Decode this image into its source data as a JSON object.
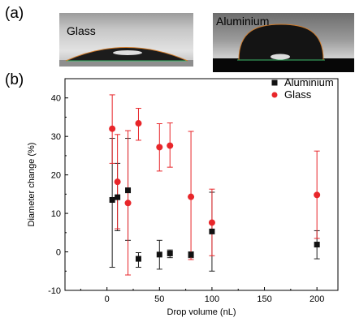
{
  "panel_a": {
    "label": "(a)",
    "photos": [
      {
        "caption": "Glass"
      },
      {
        "caption": "Aluminium"
      }
    ]
  },
  "panel_b": {
    "label": "(b)"
  },
  "colors": {
    "aluminium": "#111111",
    "glass": "#e8262a",
    "aluminium_errorbar": "#222222",
    "glass_errorbar": "#e8262a",
    "drop_dark": "#1a1a1a",
    "baseline_line": "#3cba6a"
  },
  "chart_data": {
    "type": "scatter",
    "title": "",
    "xlabel": "Drop volume (nL)",
    "ylabel": "Diameter change (%)",
    "xlim": [
      -40,
      220
    ],
    "ylim": [
      -10,
      45
    ],
    "xticks": [
      0,
      50,
      100,
      150,
      200
    ],
    "yticks": [
      -10,
      0,
      10,
      20,
      30,
      40
    ],
    "xtick_labels": [
      "0",
      "50",
      "100",
      "150",
      "200"
    ],
    "ytick_labels": [
      "-10",
      "0",
      "10",
      "20",
      "30",
      "40"
    ],
    "grid": false,
    "legend_position": "top-right",
    "series": [
      {
        "name": "Aluminium",
        "marker": "square",
        "color": "#111111",
        "x": [
          5,
          10,
          20,
          30,
          50,
          60,
          80,
          100,
          200
        ],
        "y": [
          13.5,
          14.2,
          16.0,
          -1.8,
          -0.7,
          -0.4,
          -0.7,
          5.3,
          1.9
        ],
        "y_low": [
          -4.0,
          5.5,
          3.0,
          -4.0,
          -4.5,
          -1.5,
          -1.5,
          -5.0,
          -1.8
        ],
        "y_high": [
          29.5,
          23.0,
          29.5,
          -0.2,
          3.0,
          0.5,
          0.0,
          15.5,
          5.5
        ]
      },
      {
        "name": "Glass",
        "marker": "circle",
        "color": "#e8262a",
        "x": [
          5,
          10,
          20,
          30,
          50,
          60,
          80,
          100,
          200
        ],
        "y": [
          32.0,
          18.2,
          12.7,
          33.4,
          27.2,
          27.6,
          14.3,
          7.6,
          14.8
        ],
        "y_low": [
          23.0,
          6.0,
          -6.0,
          29.0,
          21.0,
          22.0,
          -2.0,
          -1.0,
          3.5
        ],
        "y_high": [
          40.8,
          30.5,
          31.5,
          37.3,
          33.3,
          33.5,
          31.3,
          16.3,
          26.2
        ]
      }
    ]
  }
}
